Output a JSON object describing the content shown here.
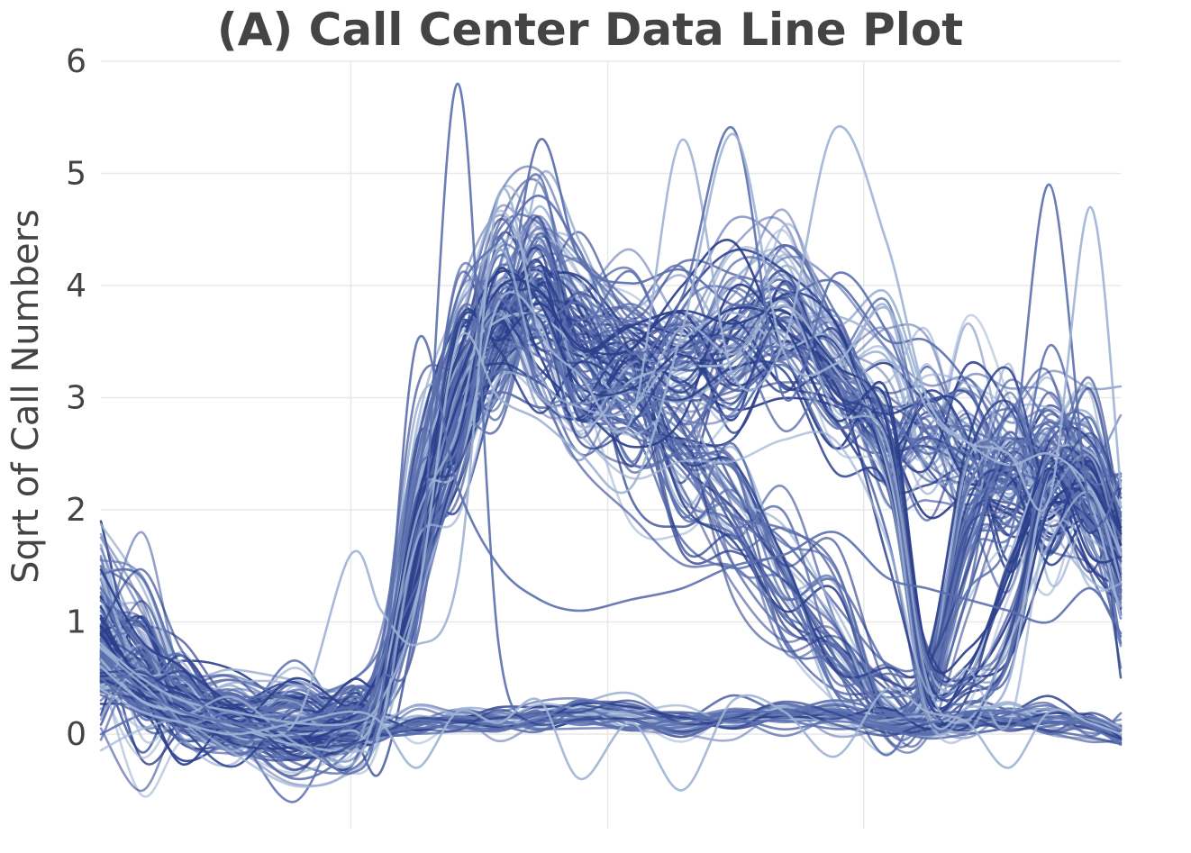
{
  "chart_data": {
    "type": "line",
    "title": "(A) Call Center Data Line Plot",
    "xlabel": "",
    "ylabel": "Sqrt of Call Numbers",
    "x_range": [
      0,
      1
    ],
    "ylim": [
      -0.85,
      6.05
    ],
    "y_ticks": [
      0,
      1,
      2,
      3,
      4,
      5,
      6
    ],
    "x_gridlines": [
      0.245,
      0.497,
      0.748
    ],
    "x_tick_labels": [],
    "grid": true,
    "legend": "none",
    "colors": {
      "dark": "#2b3f8c",
      "mid": "#5b6fae",
      "light": "#9fb3d5",
      "title": "#444444"
    },
    "x_knots": [
      0.0,
      0.04,
      0.08,
      0.13,
      0.19,
      0.245,
      0.275,
      0.31,
      0.35,
      0.39,
      0.43,
      0.47,
      0.52,
      0.57,
      0.62,
      0.67,
      0.72,
      0.77,
      0.81,
      0.85,
      0.89,
      0.93,
      0.97,
      1.0
    ],
    "series_groups": [
      {
        "count": 55,
        "spread": 0.35,
        "baseline": [
          0.9,
          0.6,
          0.3,
          0.15,
          0.08,
          0.05,
          0.4,
          1.9,
          3.1,
          3.8,
          4.2,
          3.6,
          3.4,
          3.3,
          3.6,
          3.8,
          3.3,
          2.9,
          2.7,
          2.6,
          2.4,
          2.5,
          2.3,
          1.6
        ]
      },
      {
        "count": 40,
        "spread": 0.35,
        "baseline": [
          0.8,
          0.55,
          0.25,
          0.1,
          0.05,
          0.05,
          0.3,
          1.7,
          2.9,
          3.6,
          3.8,
          3.2,
          2.9,
          2.4,
          1.9,
          1.3,
          0.9,
          0.3,
          0.4,
          1.9,
          2.3,
          2.1,
          2.0,
          1.4
        ]
      },
      {
        "count": 30,
        "spread": 0.12,
        "baseline": [
          0.6,
          0.35,
          0.15,
          0.08,
          0.05,
          0.03,
          0.05,
          0.08,
          0.1,
          0.12,
          0.15,
          0.18,
          0.15,
          0.12,
          0.15,
          0.18,
          0.15,
          0.1,
          0.08,
          0.12,
          0.15,
          0.12,
          0.1,
          0.05
        ]
      },
      {
        "count": 25,
        "spread": 0.3,
        "baseline": [
          0.7,
          0.5,
          0.25,
          0.1,
          0.05,
          0.05,
          0.35,
          1.8,
          3.0,
          3.7,
          3.4,
          3.0,
          3.1,
          3.3,
          3.4,
          3.5,
          3.0,
          2.6,
          0.5,
          0.4,
          0.9,
          2.2,
          2.3,
          1.7
        ]
      }
    ],
    "outlier_series": [
      [
        0.5,
        0.2,
        0.1,
        0.05,
        0.05,
        0.1,
        0.5,
        1.0,
        5.8,
        0.8,
        0.2,
        0.3,
        0.2,
        0.1,
        0.2,
        0.2,
        0.3,
        0.2,
        0.1,
        0.2,
        0.2,
        0.1,
        0.1,
        0.0
      ],
      [
        0.6,
        0.3,
        0.2,
        0.1,
        0.1,
        1.6,
        1.1,
        0.8,
        1.4,
        4.8,
        3.6,
        3.2,
        2.8,
        5.3,
        3.2,
        3.5,
        5.4,
        4.4,
        3.0,
        2.6,
        2.4,
        2.5,
        2.2,
        1.6
      ],
      [
        0.7,
        0.4,
        0.2,
        0.1,
        0.1,
        0.1,
        0.6,
        2.3,
        3.9,
        4.4,
        4.8,
        4.3,
        3.4,
        3.9,
        5.4,
        3.0,
        4.1,
        3.6,
        2.7,
        2.5,
        2.3,
        4.9,
        2.0,
        2.3
      ],
      [
        0.8,
        0.5,
        0.3,
        0.2,
        0.1,
        0.1,
        0.3,
        1.2,
        3.5,
        3.0,
        2.8,
        2.5,
        2.2,
        3.6,
        5.35,
        3.4,
        3.3,
        3.8,
        2.9,
        2.6,
        2.5,
        2.1,
        4.7,
        2.2
      ],
      [
        1.3,
        0.8,
        0.4,
        0.1,
        0.0,
        -0.35,
        0.3,
        3.5,
        2.2,
        1.5,
        1.2,
        1.1,
        1.2,
        1.3,
        1.5,
        1.6,
        1.8,
        1.4,
        1.3,
        1.2,
        1.1,
        1.0,
        1.3,
        0.9
      ],
      [
        0.4,
        0.2,
        0.1,
        0.0,
        0.1,
        0.2,
        0.1,
        -0.3,
        0.2,
        0.1,
        0.3,
        -0.4,
        0.1,
        -0.5,
        0.3,
        0.2,
        -0.2,
        0.4,
        0.2,
        0.1,
        -0.3,
        0.2,
        0.1,
        0.0
      ]
    ]
  }
}
